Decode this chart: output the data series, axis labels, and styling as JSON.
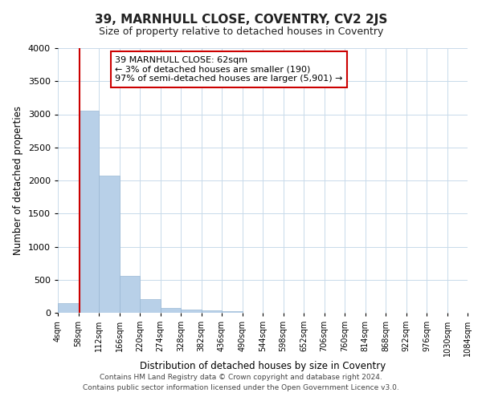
{
  "title": "39, MARNHULL CLOSE, COVENTRY, CV2 2JS",
  "subtitle": "Size of property relative to detached houses in Coventry",
  "xlabel": "Distribution of detached houses by size in Coventry",
  "ylabel": "Number of detached properties",
  "bin_edges": [
    4,
    58,
    112,
    166,
    220,
    274,
    328,
    382,
    436,
    490,
    544,
    598,
    652,
    706,
    760,
    814,
    868,
    922,
    976,
    1030,
    1084
  ],
  "bar_heights": [
    150,
    3055,
    2075,
    560,
    205,
    75,
    45,
    35,
    30,
    0,
    0,
    0,
    0,
    0,
    0,
    0,
    0,
    0,
    0,
    0
  ],
  "bar_color": "#b8d0e8",
  "bar_edgecolor": "#9ab8d4",
  "property_size": 62,
  "vline_color": "#cc0000",
  "annotation_text": "39 MARNHULL CLOSE: 62sqm\n← 3% of detached houses are smaller (190)\n97% of semi-detached houses are larger (5,901) →",
  "annotation_boxcolor": "#ffffff",
  "annotation_boxedge": "#cc0000",
  "ylim": [
    0,
    4000
  ],
  "yticks": [
    0,
    500,
    1000,
    1500,
    2000,
    2500,
    3000,
    3500,
    4000
  ],
  "background_color": "#ffffff",
  "grid_color": "#c8daea",
  "footer_line1": "Contains HM Land Registry data © Crown copyright and database right 2024.",
  "footer_line2": "Contains public sector information licensed under the Open Government Licence v3.0."
}
